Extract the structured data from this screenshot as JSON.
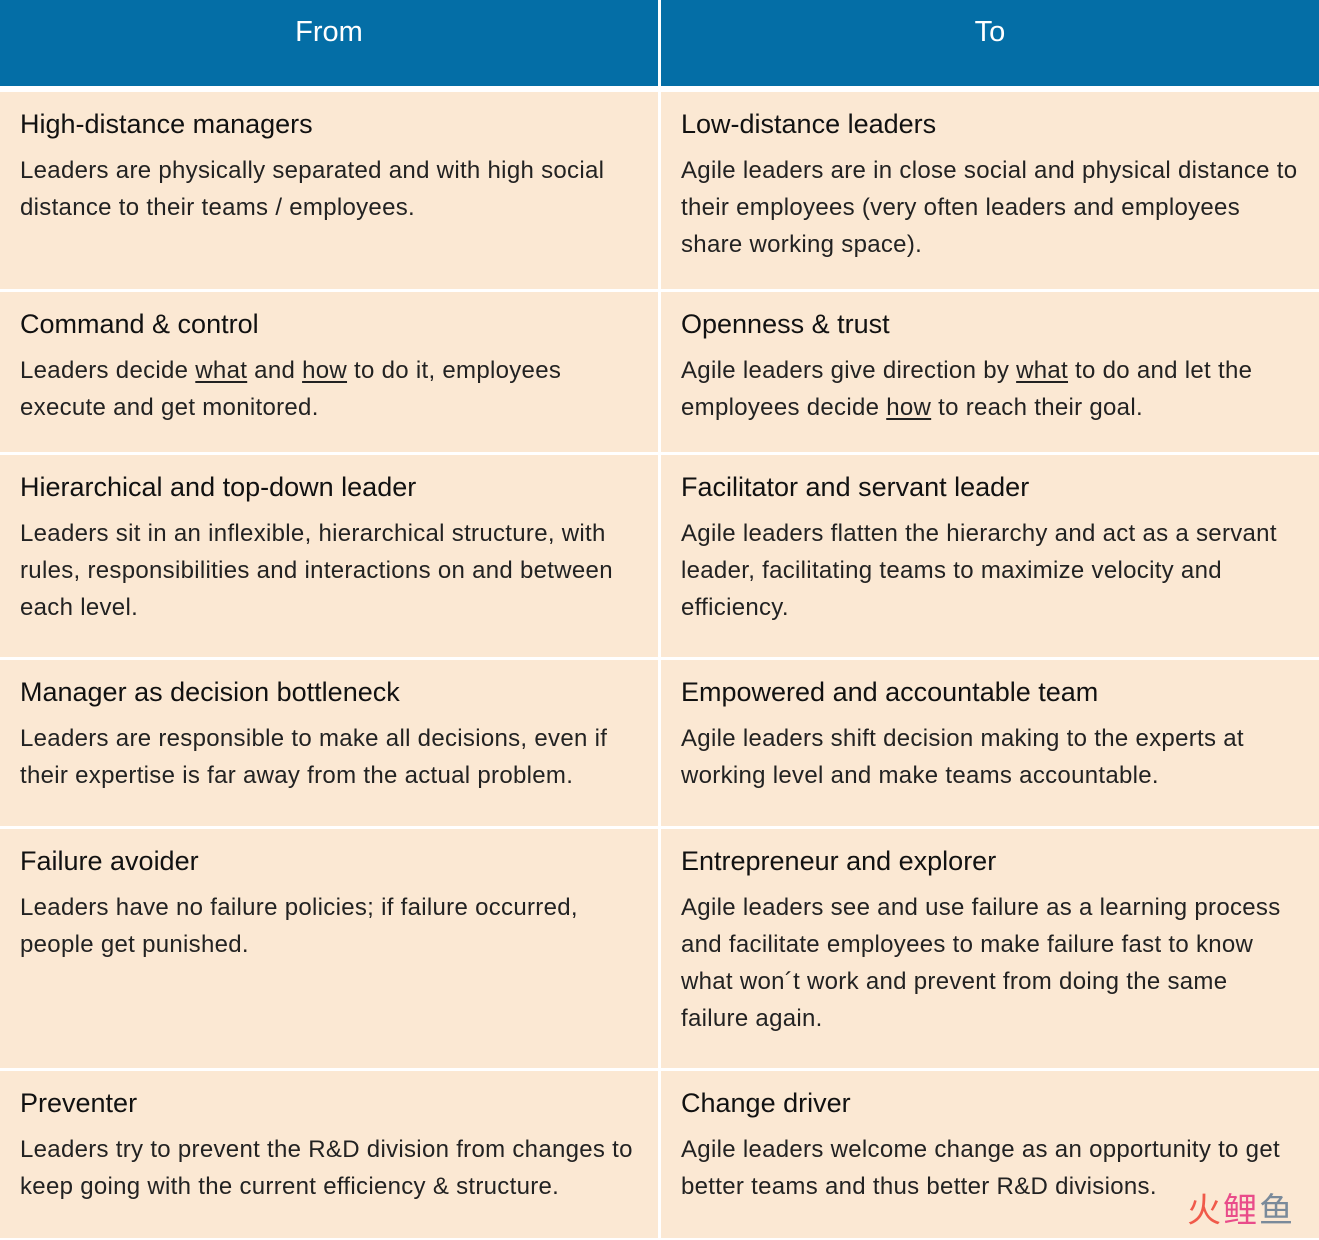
{
  "header": {
    "from": "From",
    "to": "To"
  },
  "rows": [
    {
      "from_title": "High-distance managers",
      "from_desc": "Leaders are physically separated and with high social distance to their teams / employees.",
      "to_title": "Low-distance leaders",
      "to_desc": "Agile leaders are in close social and physical distance to their employees (very often leaders and employees share working space)."
    },
    {
      "from_title": "Command & control",
      "from_desc_parts": [
        "Leaders decide ",
        "what",
        " and ",
        "how",
        " to do it, employees execute and get monitored."
      ],
      "to_title": "Openness & trust",
      "to_desc_parts": [
        "Agile leaders give direction by ",
        "what",
        " to do and let the employees decide ",
        "how",
        " to reach their goal."
      ]
    },
    {
      "from_title": "Hierarchical and top-down leader",
      "from_desc": "Leaders sit in an inflexible, hierarchical structure, with rules, responsibilities and interactions on and between each level.",
      "to_title": "Facilitator and servant leader",
      "to_desc": "Agile leaders flatten the hierarchy and act as a servant leader, facilitating teams to maximize velocity and efficiency."
    },
    {
      "from_title": "Manager as decision bottleneck",
      "from_desc": "Leaders are responsible to make all decisions, even if their expertise is far away from the actual problem.",
      "to_title": "Empowered and accountable team",
      "to_desc": "Agile leaders shift decision making to the experts at working level and make teams accountable."
    },
    {
      "from_title": "Failure avoider",
      "from_desc": "Leaders have no failure policies; if failure occurred, people get punished.",
      "to_title": "Entrepreneur and explorer",
      "to_desc": "Agile leaders see and use failure as a learning process and facilitate employees to make failure fast to know what won´t work and prevent from doing the same failure again."
    },
    {
      "from_title": "Preventer",
      "from_desc": "Leaders try to prevent the R&D division from changes to keep going with the current efficiency & structure.",
      "to_title": "Change driver",
      "to_desc": "Agile leaders welcome change as an opportunity to get better teams and thus better R&D divisions."
    }
  ],
  "watermark": {
    "char1": "火",
    "char2": "鲤",
    "char3": "鱼"
  },
  "colors": {
    "header_bg": "#046ea6",
    "cell_bg": "#fbe8d3"
  }
}
